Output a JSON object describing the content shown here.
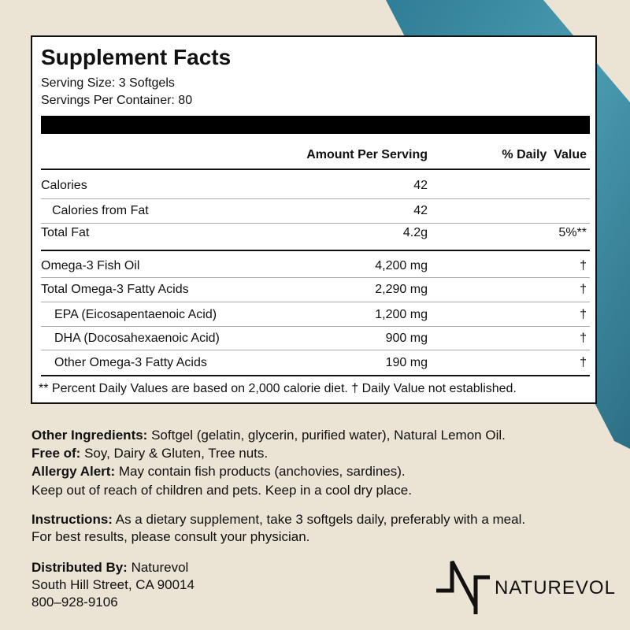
{
  "panel": {
    "title": "Supplement Facts",
    "serving_size": "Serving Size: 3 Softgels",
    "servings_per_container": "Servings Per Container: 80",
    "header": {
      "amount": "Amount Per Serving",
      "daily_value": "% Daily  Value"
    },
    "rows": [
      {
        "name": "Calories",
        "amount": "42"
      },
      {
        "name": "Calories from Fat",
        "amount": "42"
      },
      {
        "name": "Total Fat",
        "amount": "4.2g",
        "daily_value": "5%**"
      },
      {
        "name": "Omega-3 Fish Oil",
        "amount": "4,200 mg",
        "daily_value": "†"
      },
      {
        "name": "Total Omega-3 Fatty Acids",
        "amount": "2,290 mg",
        "daily_value": "†"
      },
      {
        "name": "EPA (Eicosapentaenoic Acid)",
        "amount": "1,200 mg",
        "daily_value": "†"
      },
      {
        "name": "DHA (Docosahexaenoic Acid)",
        "amount": "900 mg",
        "daily_value": "†"
      },
      {
        "name": "Other Omega-3 Fatty Acids",
        "amount": "190 mg",
        "daily_value": "†"
      }
    ],
    "footnote": "** Percent Daily Values are based on 2,000 calorie diet. † Daily Value not established."
  },
  "info": {
    "other_ingredients": {
      "label": "Other Ingredients:",
      "text": " Softgel (gelatin, glycerin, purified water), Natural Lemon Oil."
    },
    "free_of": {
      "label": "Free of:",
      "text": " Soy, Dairy & Gluten, Tree nuts."
    },
    "allergy": {
      "label": "Allergy Alert:",
      "text": " May contain fish products (anchovies, sardines)."
    },
    "storage": "Keep out of reach of children and pets. Keep in a cool dry place.",
    "instructions": {
      "label": "Instructions:",
      "text": " As a dietary supplement, take 3 softgels daily, preferably with a meal.",
      "text2": "For best results, please consult your physician."
    },
    "distributor": {
      "label": "Distributed By:",
      "name": " Naturevol",
      "address": "South Hill Street, CA 90014",
      "phone": "800–928-9106"
    }
  },
  "logo": {
    "text": "NATUREVOL"
  }
}
